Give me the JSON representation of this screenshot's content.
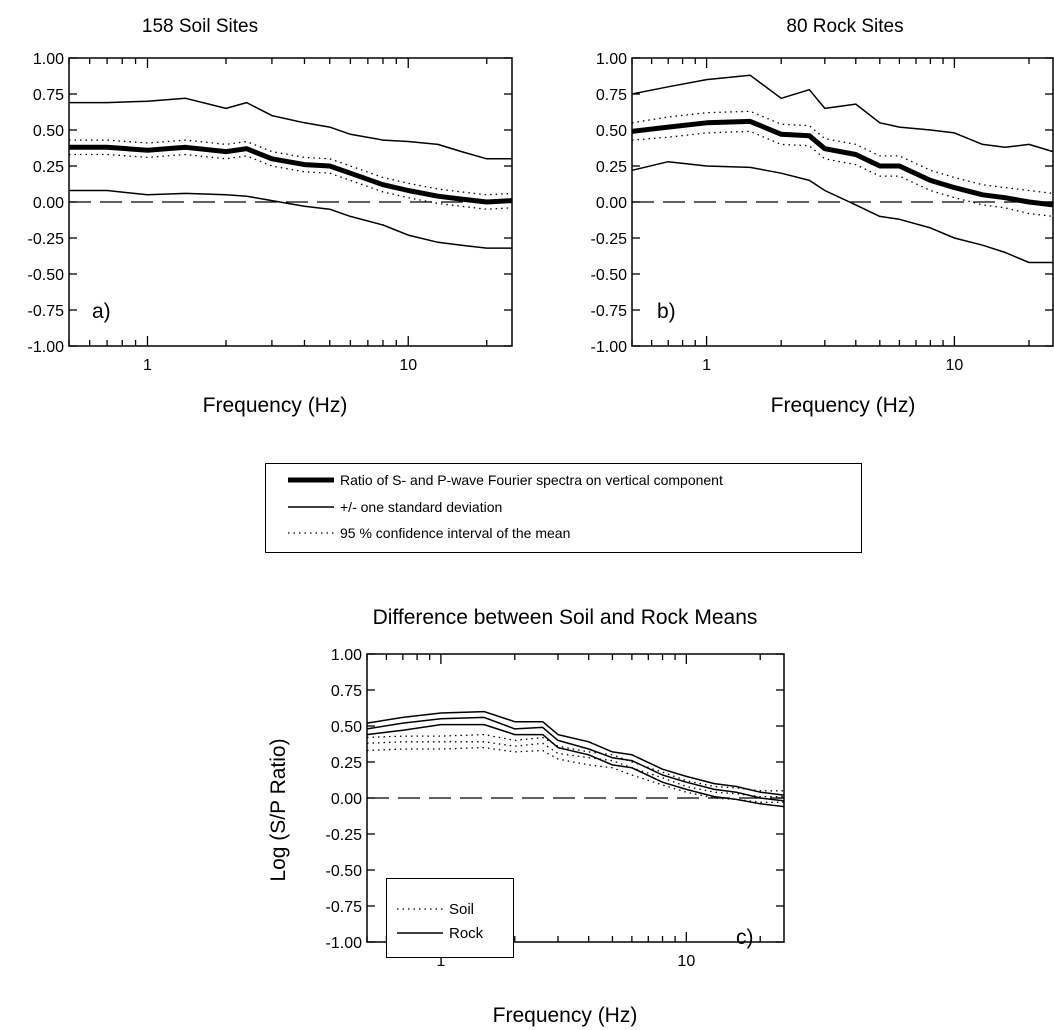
{
  "panels": [
    {
      "id": "a",
      "title": "158 Soil Sites",
      "xlabel": "Frequency (Hz)",
      "ylabel": "",
      "letter": "a)"
    },
    {
      "id": "b",
      "title": "80 Rock Sites",
      "xlabel": "Frequency (Hz)",
      "ylabel": "",
      "letter": "b)"
    },
    {
      "id": "c",
      "title": "Difference between Soil and Rock Means",
      "xlabel": "Frequency (Hz)",
      "ylabel": "Log (S/P Ratio)",
      "letter": "c)"
    }
  ],
  "legend_top": [
    {
      "label": "Ratio of S- and P-wave Fourier spectra on vertical component",
      "style": "thick"
    },
    {
      "label": "+/- one standard deviation",
      "style": "solid"
    },
    {
      "label": "95 % confidence interval of the mean",
      "style": "dotted"
    }
  ],
  "legend_c": [
    {
      "label": "Soil",
      "style": "dotted"
    },
    {
      "label": "Rock",
      "style": "solid"
    }
  ],
  "chart_data": [
    {
      "type": "line",
      "title": "158 Soil Sites",
      "xlabel": "Frequency (Hz)",
      "ylabel": "",
      "xscale": "log",
      "xlim": [
        0.5,
        25
      ],
      "ylim": [
        -1.0,
        1.0
      ],
      "xticks": [
        1,
        10
      ],
      "yticks": [
        "1.00",
        "0.75",
        "0.50",
        "0.25",
        "0.00",
        "-0.25",
        "-0.50",
        "-0.75",
        "-1.00"
      ],
      "x": [
        0.5,
        0.7,
        1.0,
        1.4,
        2.0,
        2.4,
        3.0,
        4.0,
        5.0,
        6.0,
        8.0,
        10,
        13,
        16,
        20,
        25
      ],
      "series": [
        {
          "style": "thick",
          "values": [
            0.38,
            0.38,
            0.36,
            0.38,
            0.35,
            0.37,
            0.3,
            0.26,
            0.25,
            0.2,
            0.12,
            0.08,
            0.04,
            0.02,
            0.0,
            0.01
          ]
        },
        {
          "style": "solid",
          "values": [
            0.69,
            0.69,
            0.7,
            0.72,
            0.65,
            0.69,
            0.6,
            0.55,
            0.52,
            0.47,
            0.43,
            0.42,
            0.4,
            0.35,
            0.3,
            0.3
          ]
        },
        {
          "style": "solid",
          "values": [
            0.08,
            0.08,
            0.05,
            0.06,
            0.05,
            0.04,
            0.01,
            -0.03,
            -0.05,
            -0.1,
            -0.16,
            -0.23,
            -0.28,
            -0.3,
            -0.32,
            -0.32
          ]
        },
        {
          "style": "dotted",
          "values": [
            0.43,
            0.43,
            0.41,
            0.43,
            0.4,
            0.42,
            0.35,
            0.31,
            0.3,
            0.25,
            0.17,
            0.13,
            0.09,
            0.07,
            0.05,
            0.06
          ]
        },
        {
          "style": "dotted",
          "values": [
            0.33,
            0.33,
            0.31,
            0.33,
            0.3,
            0.32,
            0.25,
            0.21,
            0.2,
            0.15,
            0.07,
            0.03,
            -0.01,
            -0.03,
            -0.05,
            -0.04
          ]
        },
        {
          "style": "dashed",
          "values": [
            0,
            0,
            0,
            0,
            0,
            0,
            0,
            0,
            0,
            0,
            0,
            0,
            0,
            0,
            0,
            0
          ]
        }
      ]
    },
    {
      "type": "line",
      "title": "80 Rock Sites",
      "xlabel": "Frequency (Hz)",
      "ylabel": "",
      "xscale": "log",
      "xlim": [
        0.5,
        25
      ],
      "ylim": [
        -1.0,
        1.0
      ],
      "xticks": [
        1,
        10
      ],
      "yticks": [
        "1.00",
        "0.75",
        "0.50",
        "0.25",
        "0.00",
        "-0.25",
        "-0.50",
        "-0.75",
        "-1.00"
      ],
      "x": [
        0.5,
        0.7,
        1.0,
        1.5,
        2.0,
        2.6,
        3.0,
        4.0,
        5.0,
        6.0,
        8.0,
        10,
        13,
        16,
        20,
        25
      ],
      "series": [
        {
          "style": "thick",
          "values": [
            0.49,
            0.52,
            0.55,
            0.56,
            0.47,
            0.46,
            0.37,
            0.33,
            0.25,
            0.25,
            0.15,
            0.1,
            0.05,
            0.03,
            0.0,
            -0.02
          ]
        },
        {
          "style": "solid",
          "values": [
            0.75,
            0.8,
            0.85,
            0.88,
            0.72,
            0.78,
            0.65,
            0.68,
            0.55,
            0.52,
            0.5,
            0.48,
            0.4,
            0.38,
            0.4,
            0.35
          ]
        },
        {
          "style": "solid",
          "values": [
            0.22,
            0.28,
            0.25,
            0.24,
            0.2,
            0.15,
            0.08,
            -0.02,
            -0.1,
            -0.12,
            -0.18,
            -0.25,
            -0.3,
            -0.35,
            -0.42,
            -0.42
          ]
        },
        {
          "style": "dotted",
          "values": [
            0.55,
            0.59,
            0.62,
            0.63,
            0.54,
            0.53,
            0.44,
            0.4,
            0.32,
            0.32,
            0.22,
            0.17,
            0.12,
            0.1,
            0.08,
            0.06
          ]
        },
        {
          "style": "dotted",
          "values": [
            0.43,
            0.45,
            0.48,
            0.49,
            0.4,
            0.39,
            0.3,
            0.26,
            0.18,
            0.18,
            0.08,
            0.03,
            -0.02,
            -0.04,
            -0.08,
            -0.1
          ]
        },
        {
          "style": "dashed",
          "values": [
            0,
            0,
            0,
            0,
            0,
            0,
            0,
            0,
            0,
            0,
            0,
            0,
            0,
            0,
            0,
            0
          ]
        }
      ]
    },
    {
      "type": "line",
      "title": "Difference between Soil and Rock Means",
      "xlabel": "Frequency (Hz)",
      "ylabel": "Log (S/P Ratio)",
      "xscale": "log",
      "xlim": [
        0.5,
        25
      ],
      "ylim": [
        -1.0,
        1.0
      ],
      "xticks": [
        1,
        10
      ],
      "yticks": [
        "1.00",
        "0.75",
        "0.50",
        "0.25",
        "0.00",
        "-0.25",
        "-0.50",
        "-0.75",
        "-1.00"
      ],
      "x": [
        0.5,
        0.7,
        1.0,
        1.5,
        2.0,
        2.6,
        3.0,
        4.0,
        5.0,
        6.0,
        8.0,
        10,
        13,
        16,
        20,
        25
      ],
      "series": [
        {
          "name": "Soil",
          "style": "dotted",
          "values": [
            0.42,
            0.43,
            0.43,
            0.44,
            0.4,
            0.42,
            0.36,
            0.32,
            0.3,
            0.25,
            0.18,
            0.12,
            0.08,
            0.07,
            0.05,
            0.05
          ]
        },
        {
          "name": "Soil",
          "style": "dotted",
          "values": [
            0.38,
            0.39,
            0.39,
            0.39,
            0.36,
            0.38,
            0.31,
            0.28,
            0.26,
            0.21,
            0.14,
            0.08,
            0.04,
            0.03,
            0.01,
            0.01
          ]
        },
        {
          "name": "Soil",
          "style": "dotted",
          "values": [
            0.33,
            0.34,
            0.34,
            0.35,
            0.32,
            0.33,
            0.27,
            0.23,
            0.21,
            0.16,
            0.09,
            0.04,
            0.0,
            -0.01,
            -0.03,
            -0.03
          ]
        },
        {
          "name": "Rock",
          "style": "solid",
          "values": [
            0.52,
            0.56,
            0.59,
            0.6,
            0.53,
            0.53,
            0.44,
            0.39,
            0.32,
            0.3,
            0.2,
            0.15,
            0.1,
            0.08,
            0.04,
            0.02
          ]
        },
        {
          "name": "Rock",
          "style": "solid",
          "values": [
            0.48,
            0.52,
            0.55,
            0.56,
            0.48,
            0.49,
            0.4,
            0.34,
            0.28,
            0.26,
            0.16,
            0.11,
            0.06,
            0.04,
            0.0,
            -0.02
          ]
        },
        {
          "name": "Rock",
          "style": "solid",
          "values": [
            0.44,
            0.47,
            0.51,
            0.51,
            0.44,
            0.44,
            0.35,
            0.3,
            0.23,
            0.21,
            0.11,
            0.06,
            0.01,
            -0.01,
            -0.04,
            -0.06
          ]
        },
        {
          "style": "dashed",
          "values": [
            0,
            0,
            0,
            0,
            0,
            0,
            0,
            0,
            0,
            0,
            0,
            0,
            0,
            0,
            0,
            0
          ]
        }
      ]
    }
  ]
}
